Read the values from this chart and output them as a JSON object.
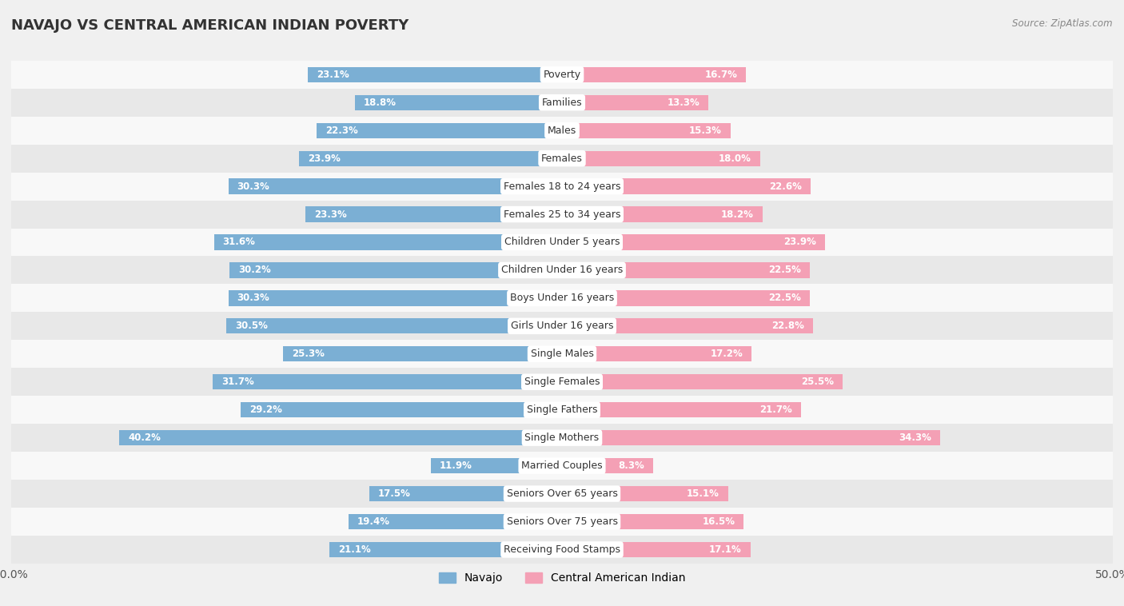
{
  "title": "NAVAJO VS CENTRAL AMERICAN INDIAN POVERTY",
  "source": "Source: ZipAtlas.com",
  "categories": [
    "Poverty",
    "Families",
    "Males",
    "Females",
    "Females 18 to 24 years",
    "Females 25 to 34 years",
    "Children Under 5 years",
    "Children Under 16 years",
    "Boys Under 16 years",
    "Girls Under 16 years",
    "Single Males",
    "Single Females",
    "Single Fathers",
    "Single Mothers",
    "Married Couples",
    "Seniors Over 65 years",
    "Seniors Over 75 years",
    "Receiving Food Stamps"
  ],
  "navajo": [
    23.1,
    18.8,
    22.3,
    23.9,
    30.3,
    23.3,
    31.6,
    30.2,
    30.3,
    30.5,
    25.3,
    31.7,
    29.2,
    40.2,
    11.9,
    17.5,
    19.4,
    21.1
  ],
  "central_american": [
    16.7,
    13.3,
    15.3,
    18.0,
    22.6,
    18.2,
    23.9,
    22.5,
    22.5,
    22.8,
    17.2,
    25.5,
    21.7,
    34.3,
    8.3,
    15.1,
    16.5,
    17.1
  ],
  "navajo_color": "#7bafd4",
  "central_american_color": "#f4a0b5",
  "navajo_label": "Navajo",
  "central_american_label": "Central American Indian",
  "background_color": "#f0f0f0",
  "row_odd_color": "#f8f8f8",
  "row_even_color": "#e8e8e8",
  "axis_max": 50.0,
  "label_fontsize": 9.0,
  "title_fontsize": 13,
  "value_fontsize": 8.5,
  "bar_height": 0.55
}
